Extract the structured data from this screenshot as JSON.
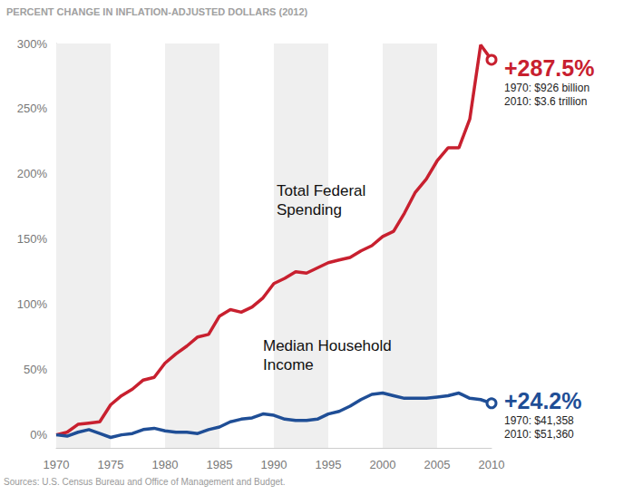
{
  "chart_data": {
    "type": "line",
    "title": "PERCENT CHANGE IN INFLATION-ADJUSTED DOLLARS (2012)",
    "source": "Sources: U.S. Census Bureau and Office of Management and Budget.",
    "x": [
      1970,
      1971,
      1972,
      1973,
      1974,
      1975,
      1976,
      1977,
      1978,
      1979,
      1980,
      1981,
      1982,
      1983,
      1984,
      1985,
      1986,
      1987,
      1988,
      1989,
      1990,
      1991,
      1992,
      1993,
      1994,
      1995,
      1996,
      1997,
      1998,
      1999,
      2000,
      2001,
      2002,
      2003,
      2004,
      2005,
      2006,
      2007,
      2008,
      2009,
      2010
    ],
    "series": [
      {
        "name": "Total Federal Spending",
        "color": "#c8202f",
        "values": [
          0,
          2,
          8,
          9,
          10,
          23,
          30,
          35,
          42,
          44,
          55,
          62,
          68,
          75,
          77,
          91,
          96,
          94,
          98,
          105,
          116,
          120,
          125,
          124,
          128,
          132,
          134,
          136,
          141,
          145,
          152,
          156,
          170,
          186,
          196,
          210,
          220,
          220,
          242,
          299,
          287.5
        ],
        "annotations": [
          "+287.5%",
          "1970: $926 billion",
          "2010: $3.6 trillion"
        ]
      },
      {
        "name": "Median Household Income",
        "color": "#1f4e96",
        "values": [
          0,
          -1,
          2,
          4,
          1,
          -2,
          0,
          1,
          4,
          5,
          3,
          2,
          2,
          1,
          4,
          6,
          10,
          12,
          13,
          16,
          15,
          12,
          11,
          11,
          12,
          16,
          18,
          22,
          27,
          31,
          32,
          30,
          28,
          28,
          28,
          29,
          30,
          32,
          28,
          27,
          24.2
        ],
        "annotations": [
          "+24.2%",
          "1970: $41,358",
          "2010: $51,360"
        ]
      }
    ],
    "xlim": [
      1970,
      2010
    ],
    "xticks": [
      1970,
      1975,
      1980,
      1985,
      1990,
      1995,
      2000,
      2005,
      2010
    ],
    "ylim": [
      -10,
      300
    ],
    "yticks": [
      {
        "value": 0,
        "label": "0%"
      },
      {
        "value": 50,
        "label": "50%"
      },
      {
        "value": 100,
        "label": "100%"
      },
      {
        "value": 150,
        "label": "150%"
      },
      {
        "value": 200,
        "label": "200%"
      },
      {
        "value": 250,
        "label": "250%"
      },
      {
        "value": 300,
        "label": "300%"
      }
    ],
    "grid": false
  }
}
